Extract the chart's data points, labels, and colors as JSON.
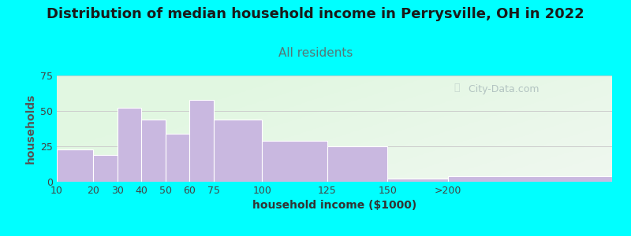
{
  "title": "Distribution of median household income in Perrysville, OH in 2022",
  "subtitle": "All residents",
  "xlabel": "household income ($1000)",
  "ylabel": "households",
  "bar_color": "#c9b8e0",
  "bar_edgecolor": "#ffffff",
  "background_outer": "#00ffff",
  "ylabel_color": "#555555",
  "xlabel_color": "#333333",
  "subtitle_color": "#557777",
  "title_color": "#1a1a1a",
  "categories": [
    "10",
    "20",
    "30",
    "40",
    "50",
    "60",
    "75",
    "100",
    "125",
    "150",
    ">200"
  ],
  "values": [
    23,
    19,
    52,
    44,
    34,
    58,
    44,
    29,
    25,
    2,
    4
  ],
  "bin_edges": [
    0,
    15,
    25,
    35,
    45,
    55,
    65,
    85,
    112,
    137,
    162,
    230
  ],
  "ylim": [
    0,
    75
  ],
  "yticks": [
    0,
    25,
    50,
    75
  ],
  "title_fontsize": 13,
  "subtitle_fontsize": 11,
  "axis_label_fontsize": 10,
  "tick_fontsize": 9,
  "watermark_text": "City-Data.com",
  "watermark_color": "#aabbbb",
  "grid_color": "#cccccc"
}
